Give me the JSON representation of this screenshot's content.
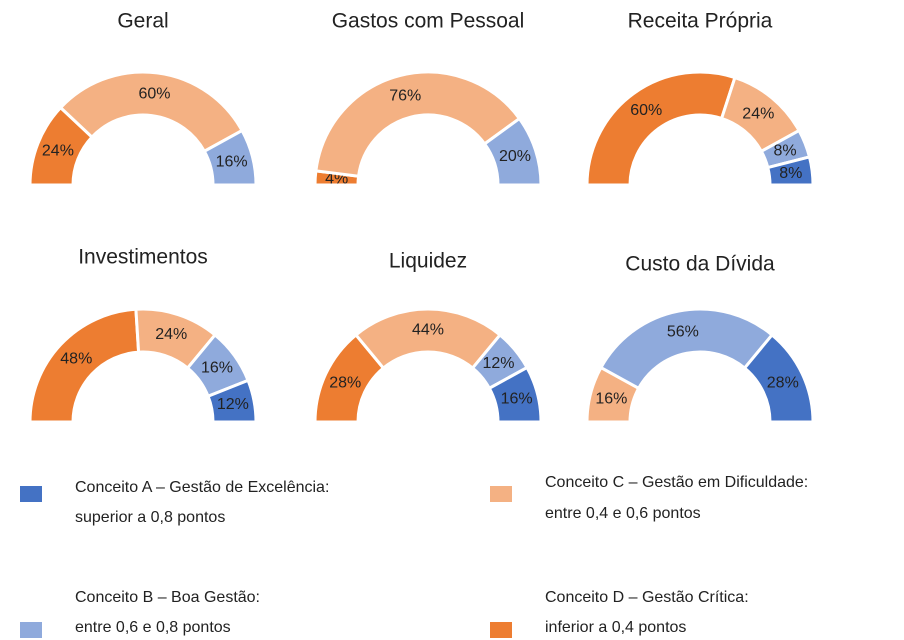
{
  "legend": [
    {
      "name": "A",
      "color": "#4472c4",
      "lines": [
        "Conceito A – Gestão de Excelência:",
        "superior a 0,8 pontos"
      ]
    },
    {
      "name": "B",
      "color": "#8faadc",
      "lines": [
        "Conceito B – Boa Gestão:",
        "entre 0,6 e 0,8 pontos"
      ]
    },
    {
      "name": "C",
      "color": "#f4b183",
      "lines": [
        "Conceito C – Gestão em Dificuldade:",
        "entre 0,4 e 0,6 pontos"
      ]
    },
    {
      "name": "D",
      "color": "#ed7d31",
      "lines": [
        "Conceito D – Gestão Crítica:",
        "inferior a 0,4 pontos"
      ]
    }
  ],
  "chart_data": [
    {
      "type": "half-donut",
      "title": "Geral",
      "values": [
        null,
        16,
        60,
        24
      ],
      "value_labels": [
        null,
        "16%",
        "60%",
        "24%"
      ]
    },
    {
      "type": "half-donut",
      "title": "Gastos com Pessoal",
      "values": [
        null,
        20,
        76,
        4
      ],
      "value_labels": [
        null,
        "20%",
        "76%",
        "4%"
      ]
    },
    {
      "type": "half-donut",
      "title": "Receita Própria",
      "values": [
        8,
        8,
        24,
        60
      ],
      "value_labels": [
        "8%",
        "8%",
        "24%",
        "60%"
      ]
    },
    {
      "type": "half-donut",
      "title": "Investimentos",
      "values": [
        12,
        16,
        24,
        48
      ],
      "value_labels": [
        "12%",
        "16%",
        "24%",
        "48%"
      ]
    },
    {
      "type": "half-donut",
      "title": "Liquidez",
      "values": [
        16,
        12,
        44,
        28
      ],
      "value_labels": [
        "16%",
        "12%",
        "44%",
        "28%"
      ]
    },
    {
      "type": "half-donut",
      "title": "Custo da Dívida",
      "values": [
        28,
        56,
        16,
        null
      ],
      "value_labels": [
        "28%",
        "56%",
        "16%",
        null
      ]
    }
  ]
}
